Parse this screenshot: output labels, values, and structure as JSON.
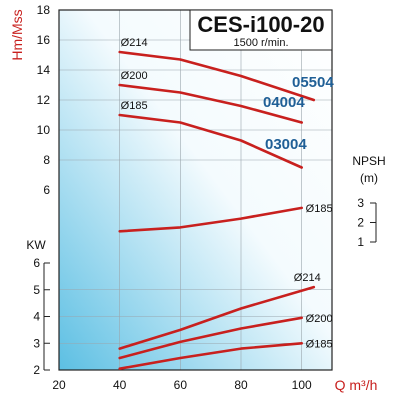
{
  "chart_data": {
    "type": "line",
    "title": "CES-i100-20",
    "subtitle": "1500 r/min.",
    "xlabel": "Q m³/h",
    "xlim": [
      20,
      110
    ],
    "x_ticks": [
      "20",
      "40",
      "60",
      "80",
      "100"
    ],
    "head": {
      "ylabel": "Hm/Mss",
      "ylim": [
        6,
        18
      ],
      "y_ticks": [
        "6",
        "8",
        "10",
        "12",
        "14",
        "16",
        "18"
      ],
      "series": [
        {
          "name": "Ø214",
          "x": [
            40,
            60,
            80,
            104
          ],
          "y": [
            15.2,
            14.7,
            13.6,
            12.0
          ]
        },
        {
          "name": "Ø200",
          "x": [
            40,
            60,
            80,
            100
          ],
          "y": [
            13.0,
            12.5,
            11.6,
            10.5
          ]
        },
        {
          "name": "Ø185",
          "x": [
            40,
            60,
            80,
            100
          ],
          "y": [
            11.0,
            10.5,
            9.3,
            7.5
          ]
        }
      ],
      "model_labels": [
        "05504",
        "04004",
        "03004"
      ]
    },
    "npsh": {
      "ylabel": "NPSH",
      "unit": "(m)",
      "ylim": [
        1,
        3
      ],
      "y_ticks": [
        "3",
        "2",
        "1"
      ],
      "series": [
        {
          "name": "Ø185",
          "x": [
            40,
            60,
            80,
            100
          ],
          "y": [
            1.55,
            1.75,
            2.2,
            2.75
          ]
        }
      ]
    },
    "power": {
      "ylabel": "KW",
      "ylim": [
        2,
        6
      ],
      "y_ticks": [
        "2",
        "3",
        "4",
        "5",
        "6"
      ],
      "series": [
        {
          "name": "Ø214",
          "x": [
            40,
            60,
            80,
            104
          ],
          "y": [
            2.8,
            3.5,
            4.3,
            5.1
          ]
        },
        {
          "name": "Ø200",
          "x": [
            40,
            60,
            80,
            100
          ],
          "y": [
            2.45,
            3.05,
            3.55,
            3.95
          ]
        },
        {
          "name": "Ø185",
          "x": [
            40,
            60,
            80,
            100
          ],
          "y": [
            2.05,
            2.45,
            2.8,
            3.0
          ]
        }
      ]
    },
    "grid": true,
    "colors": {
      "curve": "#c8201e",
      "model": "#1f5f96",
      "axis_label": "#c8201e",
      "bg_light": "#ffffff",
      "bg_dark": "#5cbfe3"
    }
  }
}
